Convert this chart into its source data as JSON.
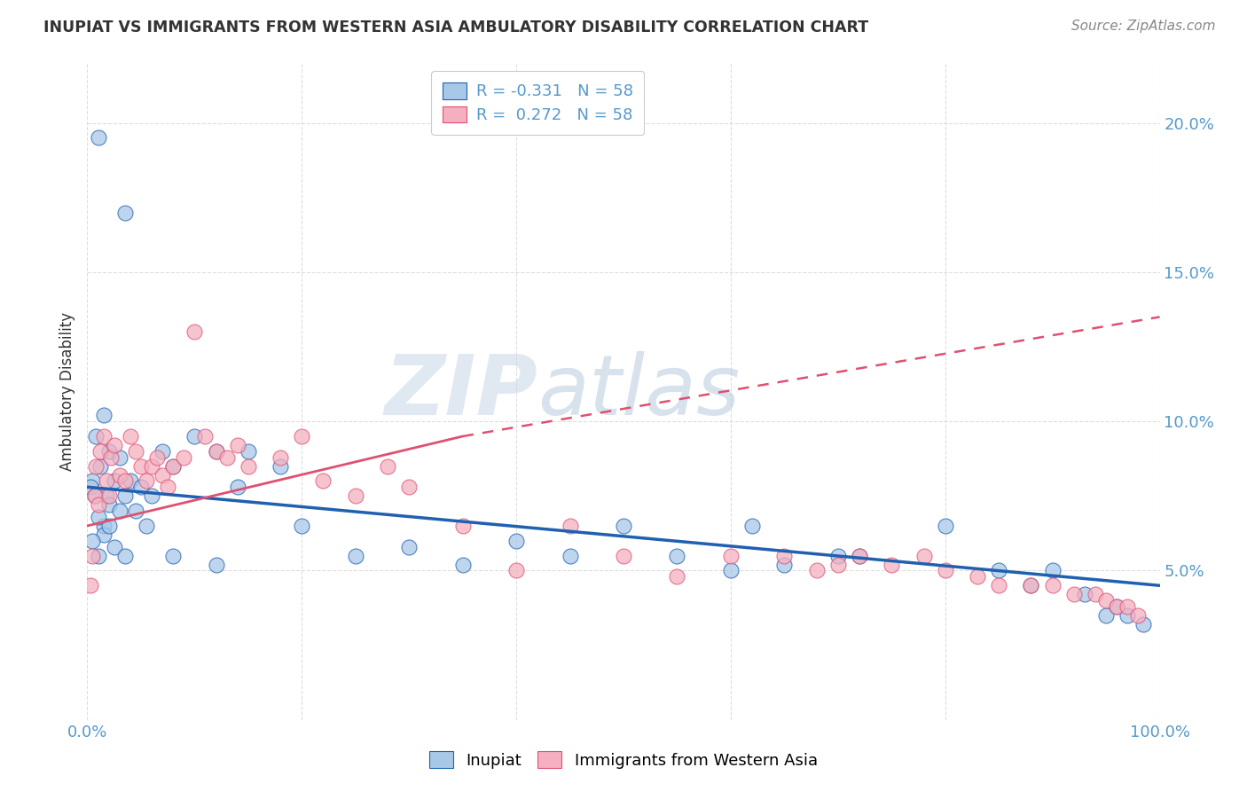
{
  "title": "INUPIAT VS IMMIGRANTS FROM WESTERN ASIA AMBULATORY DISABILITY CORRELATION CHART",
  "source": "Source: ZipAtlas.com",
  "ylabel": "Ambulatory Disability",
  "xlim": [
    0,
    100
  ],
  "ylim": [
    0,
    22
  ],
  "ytick_values": [
    0,
    5,
    10,
    15,
    20
  ],
  "label_inupiat": "Inupiat",
  "label_western_asia": "Immigrants from Western Asia",
  "color_blue": "#a8c8e8",
  "color_pink": "#f4b0c0",
  "color_blue_line": "#2060b0",
  "color_pink_line": "#e05070",
  "background": "#ffffff",
  "title_color": "#333333",
  "axis_color": "#5599cc",
  "watermark": "ZIPatlas",
  "blue_scatter": [
    [
      1.0,
      19.5
    ],
    [
      3.5,
      17.0
    ],
    [
      1.5,
      10.2
    ],
    [
      0.8,
      9.5
    ],
    [
      2.0,
      9.0
    ],
    [
      3.0,
      8.8
    ],
    [
      1.2,
      8.5
    ],
    [
      0.5,
      8.0
    ],
    [
      2.5,
      8.0
    ],
    [
      4.0,
      8.0
    ],
    [
      1.8,
      7.5
    ],
    [
      5.0,
      7.8
    ],
    [
      3.5,
      7.5
    ],
    [
      6.0,
      7.5
    ],
    [
      2.0,
      7.2
    ],
    [
      4.5,
      7.0
    ],
    [
      1.5,
      6.5
    ],
    [
      3.0,
      7.0
    ],
    [
      5.5,
      6.5
    ],
    [
      7.0,
      9.0
    ],
    [
      8.0,
      8.5
    ],
    [
      10.0,
      9.5
    ],
    [
      12.0,
      9.0
    ],
    [
      14.0,
      7.8
    ],
    [
      15.0,
      9.0
    ],
    [
      18.0,
      8.5
    ],
    [
      0.3,
      7.8
    ],
    [
      0.7,
      7.5
    ],
    [
      1.0,
      6.8
    ],
    [
      1.5,
      6.2
    ],
    [
      2.0,
      6.5
    ],
    [
      0.5,
      6.0
    ],
    [
      1.0,
      5.5
    ],
    [
      2.5,
      5.8
    ],
    [
      3.5,
      5.5
    ],
    [
      8.0,
      5.5
    ],
    [
      12.0,
      5.2
    ],
    [
      20.0,
      6.5
    ],
    [
      25.0,
      5.5
    ],
    [
      30.0,
      5.8
    ],
    [
      35.0,
      5.2
    ],
    [
      40.0,
      6.0
    ],
    [
      45.0,
      5.5
    ],
    [
      50.0,
      6.5
    ],
    [
      55.0,
      5.5
    ],
    [
      60.0,
      5.0
    ],
    [
      62.0,
      6.5
    ],
    [
      65.0,
      5.2
    ],
    [
      70.0,
      5.5
    ],
    [
      72.0,
      5.5
    ],
    [
      80.0,
      6.5
    ],
    [
      85.0,
      5.0
    ],
    [
      88.0,
      4.5
    ],
    [
      90.0,
      5.0
    ],
    [
      93.0,
      4.2
    ],
    [
      95.0,
      3.5
    ],
    [
      96.0,
      3.8
    ],
    [
      97.0,
      3.5
    ],
    [
      98.5,
      3.2
    ]
  ],
  "pink_scatter": [
    [
      0.3,
      4.5
    ],
    [
      0.5,
      5.5
    ],
    [
      0.7,
      7.5
    ],
    [
      1.0,
      7.2
    ],
    [
      0.8,
      8.5
    ],
    [
      1.2,
      9.0
    ],
    [
      1.5,
      9.5
    ],
    [
      1.8,
      8.0
    ],
    [
      2.0,
      7.5
    ],
    [
      2.2,
      8.8
    ],
    [
      2.5,
      9.2
    ],
    [
      3.0,
      8.2
    ],
    [
      3.5,
      8.0
    ],
    [
      4.0,
      9.5
    ],
    [
      4.5,
      9.0
    ],
    [
      5.0,
      8.5
    ],
    [
      5.5,
      8.0
    ],
    [
      6.0,
      8.5
    ],
    [
      6.5,
      8.8
    ],
    [
      7.0,
      8.2
    ],
    [
      7.5,
      7.8
    ],
    [
      8.0,
      8.5
    ],
    [
      9.0,
      8.8
    ],
    [
      10.0,
      13.0
    ],
    [
      11.0,
      9.5
    ],
    [
      12.0,
      9.0
    ],
    [
      13.0,
      8.8
    ],
    [
      14.0,
      9.2
    ],
    [
      15.0,
      8.5
    ],
    [
      18.0,
      8.8
    ],
    [
      20.0,
      9.5
    ],
    [
      22.0,
      8.0
    ],
    [
      25.0,
      7.5
    ],
    [
      28.0,
      8.5
    ],
    [
      30.0,
      7.8
    ],
    [
      35.0,
      6.5
    ],
    [
      40.0,
      5.0
    ],
    [
      45.0,
      6.5
    ],
    [
      50.0,
      5.5
    ],
    [
      55.0,
      4.8
    ],
    [
      60.0,
      5.5
    ],
    [
      65.0,
      5.5
    ],
    [
      68.0,
      5.0
    ],
    [
      70.0,
      5.2
    ],
    [
      72.0,
      5.5
    ],
    [
      75.0,
      5.2
    ],
    [
      78.0,
      5.5
    ],
    [
      80.0,
      5.0
    ],
    [
      83.0,
      4.8
    ],
    [
      85.0,
      4.5
    ],
    [
      88.0,
      4.5
    ],
    [
      90.0,
      4.5
    ],
    [
      92.0,
      4.2
    ],
    [
      94.0,
      4.2
    ],
    [
      95.0,
      4.0
    ],
    [
      96.0,
      3.8
    ],
    [
      97.0,
      3.8
    ],
    [
      98.0,
      3.5
    ]
  ],
  "blue_line": {
    "x0": 0,
    "y0": 7.8,
    "x1": 100,
    "y1": 4.5
  },
  "pink_solid_line": {
    "x0": 0,
    "y0": 6.5,
    "x1": 35,
    "y1": 9.5
  },
  "pink_dash_line": {
    "x0": 35,
    "y0": 9.5,
    "x1": 100,
    "y1": 13.5
  }
}
